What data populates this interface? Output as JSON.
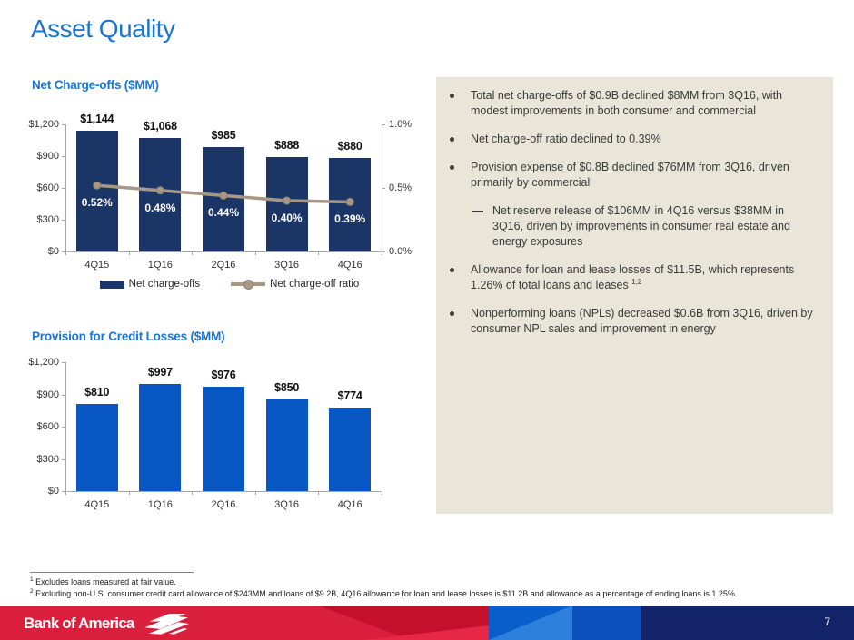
{
  "slide": {
    "title": "Asset Quality",
    "page_number": "7",
    "logo_text": "Bank of America"
  },
  "colors": {
    "title_blue": "#1b75d4",
    "bar_navy": "#1b3666",
    "bar_blue": "#0957c3",
    "line_tan": "#a79885",
    "panel_beige": "#e9e5d9",
    "footer_red": "#da1f3d",
    "footer_navy": "#14246a"
  },
  "chart_data": [
    {
      "type": "bar",
      "title": "Net Charge-offs ($MM)",
      "categories": [
        "4Q15",
        "1Q16",
        "2Q16",
        "3Q16",
        "4Q16"
      ],
      "series": [
        {
          "name": "Net charge-offs",
          "type": "bar",
          "color": "#1b3666",
          "values": [
            1144,
            1068,
            985,
            888,
            880
          ],
          "labels": [
            "$1,144",
            "$1,068",
            "$985",
            "$888",
            "$880"
          ]
        },
        {
          "name": "Net charge-off ratio",
          "type": "line",
          "color": "#a79885",
          "marker_stroke": "#93846f",
          "values": [
            0.52,
            0.48,
            0.44,
            0.4,
            0.39
          ],
          "labels": [
            "0.52%",
            "0.48%",
            "0.44%",
            "0.40%",
            "0.39%"
          ]
        }
      ],
      "y_left": {
        "min": 0,
        "max": 1200,
        "ticks": [
          "$1,200",
          "$900",
          "$600",
          "$300",
          "$0"
        ]
      },
      "y_right": {
        "min": 0,
        "max": 1.0,
        "ticks": [
          "1.0%",
          "0.5%",
          "0.0%"
        ]
      },
      "legend_position": "bottom",
      "grid": false
    },
    {
      "type": "bar",
      "title": "Provision for Credit Losses ($MM)",
      "categories": [
        "4Q15",
        "1Q16",
        "2Q16",
        "3Q16",
        "4Q16"
      ],
      "series": [
        {
          "name": "Provision for credit losses",
          "type": "bar",
          "color": "#0957c3",
          "values": [
            810,
            997,
            976,
            850,
            774
          ],
          "labels": [
            "$810",
            "$997",
            "$976",
            "$850",
            "$774"
          ]
        }
      ],
      "y_left": {
        "min": 0,
        "max": 1200,
        "ticks": [
          "$1,200",
          "$900",
          "$600",
          "$300",
          "$0"
        ]
      },
      "grid": false
    }
  ],
  "commentary": {
    "bullets": [
      {
        "level": 1,
        "text": "Total net charge-offs of $0.9B declined $8MM from 3Q16, with modest improvements in both consumer and commercial"
      },
      {
        "level": 1,
        "text": "Net charge-off ratio declined to 0.39%"
      },
      {
        "level": 1,
        "text": "Provision expense of $0.8B declined $76MM from 3Q16, driven primarily by commercial"
      },
      {
        "level": 2,
        "text": "Net reserve release of $106MM in 4Q16 versus $38MM in 3Q16, driven by improvements in consumer real estate and energy exposures"
      },
      {
        "level": 1,
        "text": "Allowance for loan and lease losses of $11.5B, which represents 1.26% of total loans and leases ",
        "sup": "1,2"
      },
      {
        "level": 1,
        "text": "Nonperforming loans (NPLs) decreased $0.6B from 3Q16, driven by consumer NPL sales and improvement in energy"
      }
    ]
  },
  "footnotes": [
    {
      "sup": "1",
      "text": " Excludes loans measured at fair value."
    },
    {
      "sup": "2",
      "text": " Excluding non-U.S. consumer credit card allowance of $243MM and loans of $9.2B, 4Q16 allowance for loan and lease losses is $11.2B and allowance as a percentage of ending loans is 1.25%."
    }
  ]
}
